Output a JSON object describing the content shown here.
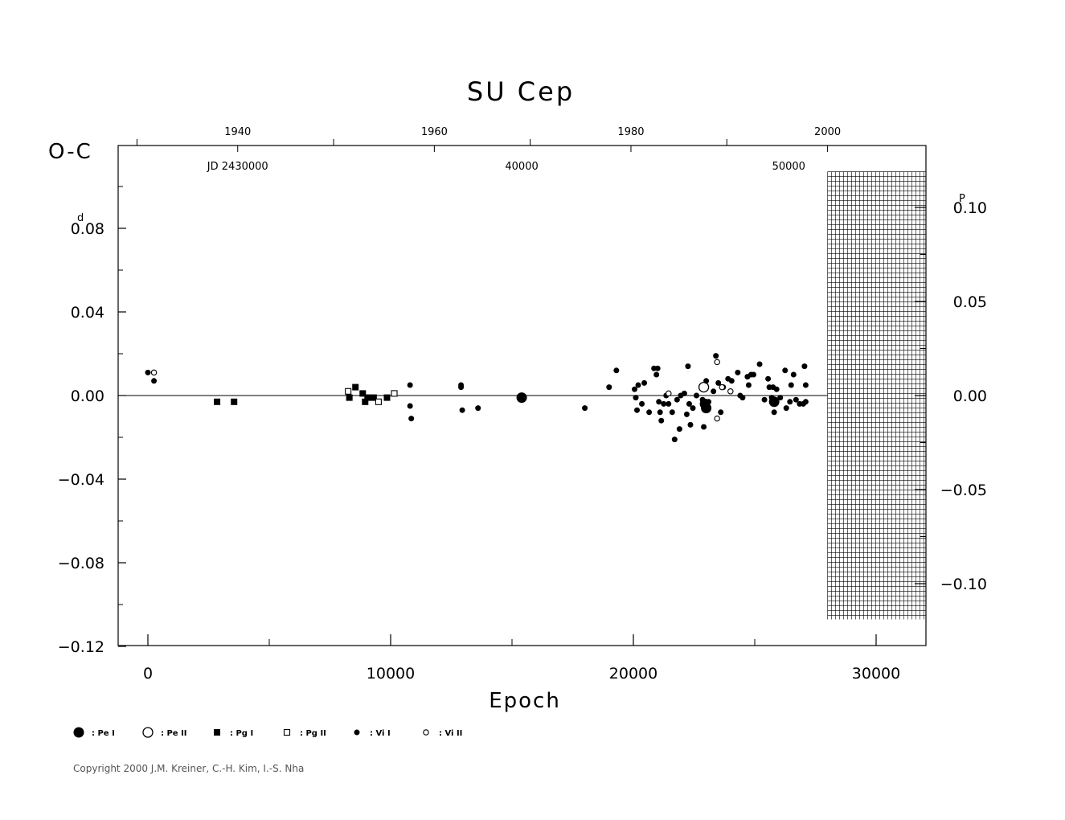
{
  "chart_data": {
    "type": "scatter",
    "title": "SU Cep",
    "ylabel": "O-C",
    "ylabel_unit": "d",
    "xlabel": "Epoch",
    "right_axis_unit": "P",
    "xlim": [
      -1200,
      32000
    ],
    "ylim": [
      -0.12,
      0.12
    ],
    "right_ylim": [
      -0.1286,
      0.1286
    ],
    "x_ticks": [
      0,
      10000,
      20000,
      30000
    ],
    "x_tick_labels": [
      "0",
      "10000",
      "20000",
      "30000"
    ],
    "y_ticks": [
      0.08,
      0.04,
      0.0,
      -0.04,
      -0.08,
      -0.12
    ],
    "y_tick_labels": [
      "0.08",
      "0.04",
      "0.00",
      "−0.04",
      "−0.08",
      "−0.12"
    ],
    "right_ticks": [
      0.1,
      0.05,
      0.0,
      -0.05,
      -0.1
    ],
    "right_tick_labels": [
      "0.10",
      "0.05",
      "0.00",
      "−0.05",
      "−0.10"
    ],
    "top_year_labels": [
      {
        "epoch": 3700,
        "label": "1940"
      },
      {
        "epoch": 11800,
        "label": "1960"
      },
      {
        "epoch": 19900,
        "label": "1980"
      },
      {
        "epoch": 28000,
        "label": "2000"
      }
    ],
    "top_jd_labels": [
      {
        "epoch": 3700,
        "label": "JD 2430000"
      },
      {
        "epoch": 15400,
        "label": "40000"
      },
      {
        "epoch": 26400,
        "label": "50000"
      }
    ],
    "legend": [
      {
        "key": "pe_primary",
        "label": ": Pe I"
      },
      {
        "key": "pe_secondary",
        "label": ": Pe II"
      },
      {
        "key": "pg_primary",
        "label": ": Pg I"
      },
      {
        "key": "pg_secondary",
        "label": ": Pg II"
      },
      {
        "key": "vi_primary",
        "label": ": Vi I"
      },
      {
        "key": "vi_secondary",
        "label": ": Vi II"
      }
    ],
    "grid": false,
    "future_hatch_from_epoch": 28000,
    "series": [
      {
        "key": "pe_primary",
        "points": [
          [
            15400,
            -0.001
          ],
          [
            22950,
            -0.004
          ],
          [
            23000,
            -0.006
          ],
          [
            25800,
            -0.003
          ]
        ]
      },
      {
        "key": "pe_secondary",
        "points": [
          [
            22900,
            0.004
          ]
        ]
      },
      {
        "key": "pg_primary",
        "points": [
          [
            2850,
            -0.003
          ],
          [
            3550,
            -0.003
          ],
          [
            8300,
            -0.001
          ],
          [
            8550,
            0.004
          ],
          [
            8850,
            0.001
          ],
          [
            8950,
            -0.003
          ],
          [
            9050,
            -0.001
          ],
          [
            9300,
            -0.001
          ],
          [
            9850,
            -0.001
          ]
        ]
      },
      {
        "key": "pg_secondary",
        "points": [
          [
            8250,
            0.002
          ],
          [
            9500,
            -0.003
          ],
          [
            10150,
            0.001
          ]
        ]
      },
      {
        "key": "vi_primary",
        "points": [
          [
            0,
            0.011
          ],
          [
            250,
            0.007
          ],
          [
            10800,
            0.005
          ],
          [
            10800,
            -0.005
          ],
          [
            10850,
            -0.011
          ],
          [
            12900,
            0.004
          ],
          [
            12900,
            0.005
          ],
          [
            12950,
            -0.007
          ],
          [
            13600,
            -0.006
          ],
          [
            18000,
            -0.006
          ],
          [
            19000,
            0.004
          ],
          [
            19300,
            0.012
          ],
          [
            20050,
            0.003
          ],
          [
            20100,
            -0.001
          ],
          [
            20150,
            -0.007
          ],
          [
            20200,
            0.005
          ],
          [
            20350,
            -0.004
          ],
          [
            20450,
            0.006
          ],
          [
            20650,
            -0.008
          ],
          [
            20850,
            0.013
          ],
          [
            20950,
            0.01
          ],
          [
            21000,
            0.013
          ],
          [
            21050,
            -0.003
          ],
          [
            21100,
            -0.008
          ],
          [
            21150,
            -0.012
          ],
          [
            21250,
            -0.004
          ],
          [
            21350,
            0.0
          ],
          [
            21450,
            -0.004
          ],
          [
            21600,
            -0.008
          ],
          [
            21700,
            -0.021
          ],
          [
            21800,
            -0.002
          ],
          [
            21900,
            -0.016
          ],
          [
            21950,
            0.0
          ],
          [
            22100,
            0.001
          ],
          [
            22200,
            -0.009
          ],
          [
            22250,
            0.014
          ],
          [
            22300,
            -0.004
          ],
          [
            22350,
            -0.014
          ],
          [
            22450,
            -0.006
          ],
          [
            22600,
            0.0
          ],
          [
            22850,
            -0.002
          ],
          [
            22900,
            -0.015
          ],
          [
            23000,
            0.007
          ],
          [
            23100,
            -0.003
          ],
          [
            23300,
            0.002
          ],
          [
            23400,
            0.019
          ],
          [
            23500,
            0.006
          ],
          [
            23600,
            -0.008
          ],
          [
            23700,
            0.004
          ],
          [
            23900,
            0.008
          ],
          [
            24050,
            0.007
          ],
          [
            24300,
            0.011
          ],
          [
            24400,
            0.0
          ],
          [
            24500,
            -0.001
          ],
          [
            24700,
            0.009
          ],
          [
            24750,
            0.005
          ],
          [
            24850,
            0.01
          ],
          [
            24950,
            0.01
          ],
          [
            25200,
            0.015
          ],
          [
            25400,
            -0.002
          ],
          [
            25550,
            0.008
          ],
          [
            25600,
            0.004
          ],
          [
            25700,
            -0.001
          ],
          [
            25750,
            0.004
          ],
          [
            25800,
            -0.008
          ],
          [
            25900,
            0.003
          ],
          [
            26050,
            -0.001
          ],
          [
            26250,
            0.012
          ],
          [
            26300,
            -0.006
          ],
          [
            26450,
            -0.003
          ],
          [
            26500,
            0.005
          ],
          [
            26600,
            0.01
          ],
          [
            26700,
            -0.002
          ],
          [
            26850,
            -0.004
          ],
          [
            27000,
            -0.004
          ],
          [
            27050,
            0.014
          ],
          [
            27100,
            0.005
          ],
          [
            27100,
            -0.003
          ]
        ]
      },
      {
        "key": "vi_secondary",
        "points": [
          [
            250,
            0.011
          ],
          [
            21450,
            0.001
          ],
          [
            23450,
            0.016
          ],
          [
            23450,
            -0.011
          ],
          [
            23650,
            0.004
          ],
          [
            24000,
            0.002
          ]
        ]
      }
    ]
  },
  "copyright": "Copyright 2000 J.M. Kreiner, C.-H. Kim, I.-S. Nha"
}
